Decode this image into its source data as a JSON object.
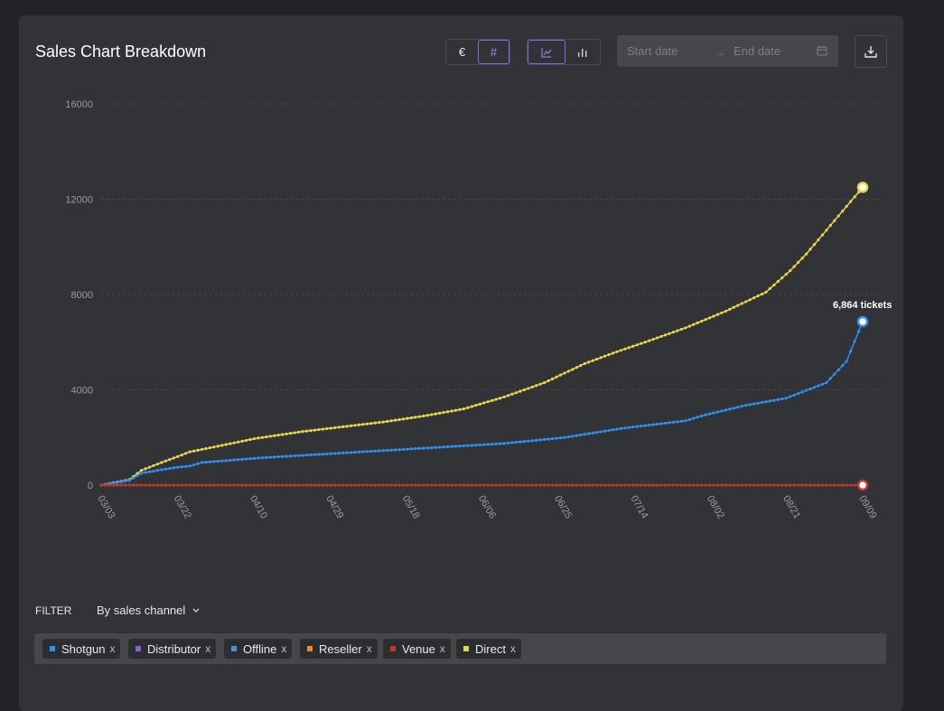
{
  "header": {
    "title": "Sales Chart Breakdown"
  },
  "toolbar": {
    "currency_label": "€",
    "count_label": "#",
    "start_placeholder": "Start date",
    "end_placeholder": "End date",
    "range_arrow": "→"
  },
  "filter": {
    "label": "FILTER",
    "select_value": "By sales channel"
  },
  "chips": [
    {
      "label": "Shotgun",
      "color": "#2f8ff0"
    },
    {
      "label": "Distributor",
      "color": "#8e5cd9"
    },
    {
      "label": "Offline",
      "color": "#4d8fcf"
    },
    {
      "label": "Reseller",
      "color": "#ee8b2a"
    },
    {
      "label": "Venue",
      "color": "#c0392b"
    },
    {
      "label": "Direct",
      "color": "#e7d64a"
    }
  ],
  "chip_remove": "x",
  "chart_data": {
    "type": "line",
    "title": "Sales Chart Breakdown",
    "y_ticks": [
      "0",
      "4000",
      "8000",
      "12000",
      "16000"
    ],
    "ylim": [
      0,
      16000
    ],
    "x_ticks": [
      "03/03",
      "03/22",
      "04/10",
      "04/29",
      "05/18",
      "06/06",
      "06/25",
      "07/14",
      "08/02",
      "08/21",
      "09/09"
    ],
    "annotation": "6,864 tickets",
    "grid": true,
    "series": [
      {
        "name": "Direct",
        "color": "#e7d64a",
        "points": [
          [
            0,
            0
          ],
          [
            7,
            230
          ],
          [
            10,
            620
          ],
          [
            15,
            950
          ],
          [
            19,
            1200
          ],
          [
            22,
            1400
          ],
          [
            28,
            1600
          ],
          [
            38,
            1950
          ],
          [
            50,
            2250
          ],
          [
            60,
            2450
          ],
          [
            70,
            2650
          ],
          [
            80,
            2900
          ],
          [
            90,
            3200
          ],
          [
            100,
            3700
          ],
          [
            110,
            4300
          ],
          [
            115,
            4700
          ],
          [
            120,
            5100
          ],
          [
            128,
            5600
          ],
          [
            135,
            6000
          ],
          [
            145,
            6600
          ],
          [
            155,
            7300
          ],
          [
            165,
            8100
          ],
          [
            171,
            9000
          ],
          [
            175,
            9700
          ],
          [
            179,
            10500
          ],
          [
            184,
            11500
          ],
          [
            189,
            12500
          ]
        ]
      },
      {
        "name": "Shotgun",
        "color": "#2f8ff0",
        "points": [
          [
            0,
            0
          ],
          [
            7,
            200
          ],
          [
            10,
            500
          ],
          [
            15,
            650
          ],
          [
            19,
            750
          ],
          [
            22,
            800
          ],
          [
            25,
            950
          ],
          [
            40,
            1150
          ],
          [
            60,
            1350
          ],
          [
            80,
            1550
          ],
          [
            100,
            1750
          ],
          [
            115,
            2000
          ],
          [
            130,
            2400
          ],
          [
            145,
            2700
          ],
          [
            150,
            2950
          ],
          [
            160,
            3350
          ],
          [
            170,
            3650
          ],
          [
            180,
            4300
          ],
          [
            185,
            5200
          ],
          [
            189,
            6864
          ]
        ]
      },
      {
        "name": "Venue",
        "color": "#c0392b",
        "points": [
          [
            0,
            0
          ],
          [
            189,
            0
          ]
        ]
      }
    ]
  },
  "colors": {
    "accent": "#8a63f0"
  }
}
